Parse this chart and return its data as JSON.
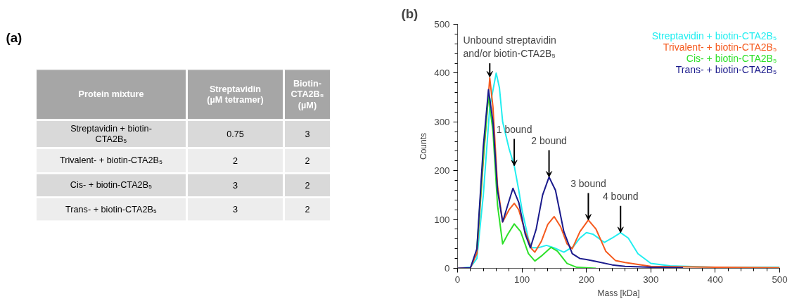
{
  "chart_data": [
    {
      "type": "other",
      "title": "(a)",
      "categories": [
        "Protein mixture",
        "Streptavidin\n(µM tetramer)",
        "Biotin-\nCTA2B₅\n(µM)"
      ],
      "annotations": [
        "Streptavidin + biotin-\nCTA2B₅",
        "0.75",
        "3",
        "Trivalent- + biotin-CTA2B₅",
        "2",
        "2",
        "Cis- + biotin-CTA2B₅",
        "3",
        "2",
        "Trans- + biotin-CTA2B₅",
        "3",
        "2"
      ]
    },
    {
      "type": "line",
      "title": "(b)",
      "xlabel": "Mass [kDa]",
      "ylabel": "Counts",
      "xlim": [
        0,
        500
      ],
      "ylim": [
        0,
        500
      ],
      "xticks": [
        0,
        100,
        200,
        300,
        400,
        500
      ],
      "yticks": [
        0,
        100,
        200,
        300,
        400,
        500
      ],
      "grid": false,
      "legend": "top right",
      "line_style": "solid",
      "marker": "none",
      "series": [
        {
          "name": "Streptavidin + biotin-CTA2B₅",
          "color": "#22eef0",
          "x": [
            0,
            20,
            30,
            40,
            50,
            60,
            65,
            70,
            80,
            88,
            95,
            100,
            110,
            115,
            125,
            138,
            150,
            165,
            180,
            190,
            200,
            210,
            228,
            240,
            253,
            265,
            280,
            300,
            330,
            400,
            500
          ],
          "values": [
            0,
            2,
            20,
            150,
            330,
            400,
            370,
            300,
            245,
            210,
            160,
            120,
            60,
            42,
            42,
            47,
            42,
            33,
            45,
            62,
            73,
            70,
            53,
            62,
            73,
            62,
            30,
            10,
            5,
            2,
            2
          ]
        },
        {
          "name": "Trivalent- + biotin-CTA2B₅",
          "color": "#f55a1e",
          "x": [
            0,
            20,
            30,
            40,
            50,
            55,
            62,
            70,
            80,
            88,
            95,
            105,
            115,
            120,
            130,
            140,
            150,
            160,
            170,
            178,
            190,
            203,
            215,
            230,
            245,
            260,
            300,
            400,
            500
          ],
          "values": [
            0,
            1,
            30,
            220,
            390,
            330,
            170,
            95,
            120,
            133,
            120,
            75,
            40,
            33,
            55,
            90,
            106,
            85,
            50,
            40,
            75,
            99,
            80,
            35,
            16,
            12,
            4,
            2,
            1
          ]
        },
        {
          "name": "Cis- + biotin-CTA2B₅",
          "color": "#2ee02a",
          "x": [
            30,
            40,
            48,
            55,
            62,
            70,
            78,
            88,
            98,
            110,
            120,
            130,
            145,
            155,
            170,
            185,
            215
          ],
          "values": [
            40,
            230,
            354,
            280,
            130,
            50,
            70,
            91,
            75,
            30,
            15,
            25,
            43,
            35,
            10,
            2,
            0
          ]
        },
        {
          "name": "Trans- + biotin-CTA2B₅",
          "color": "#1a1a8c",
          "x": [
            0,
            20,
            30,
            40,
            48,
            55,
            62,
            70,
            78,
            86,
            95,
            105,
            113,
            122,
            132,
            142,
            152,
            165,
            178,
            190,
            200,
            215,
            240,
            260,
            300,
            350
          ],
          "values": [
            0,
            1,
            40,
            250,
            366,
            300,
            160,
            95,
            130,
            164,
            135,
            70,
            42,
            80,
            150,
            187,
            160,
            75,
            30,
            20,
            18,
            14,
            7,
            4,
            2,
            1
          ]
        }
      ],
      "annotations": [
        {
          "text": "Unbound streptavidin\nand/or biotin-CTA2B₅",
          "x": 50,
          "y": 392
        },
        {
          "text": "1 bound",
          "x": 88,
          "y": 210
        },
        {
          "text": "2 bound",
          "x": 142,
          "y": 187
        },
        {
          "text": "3 bound",
          "x": 203,
          "y": 99
        },
        {
          "text": "4 bound",
          "x": 253,
          "y": 73
        }
      ]
    }
  ]
}
